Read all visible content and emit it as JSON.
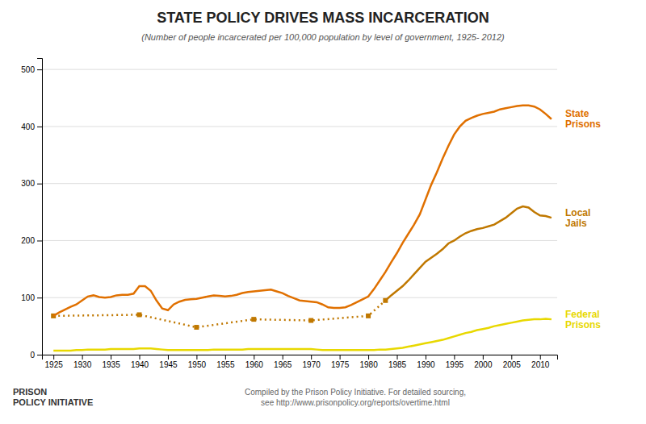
{
  "chart_data": {
    "type": "line",
    "title": "STATE POLICY DRIVES MASS INCARCERATION",
    "subtitle": "(Number of people incarcerated per 100,000 population by level of government, 1925- 2012)",
    "annotations": [
      "Compiled by the Prison Policy Initiative. For detailed sourcing,\nsee http://www.prisonpolicy.org/reports/overtime.html",
      "PRISON\nPOLICY INITIATIVE"
    ],
    "series": [
      {
        "name": "Federal\nPrisons",
        "color": "#e8d800",
        "line_style": "solid",
        "x": [
          1925,
          1926,
          1927,
          1928,
          1929,
          1930,
          1931,
          1932,
          1933,
          1934,
          1935,
          1936,
          1937,
          1938,
          1939,
          1940,
          1941,
          1942,
          1943,
          1944,
          1945,
          1946,
          1947,
          1948,
          1949,
          1950,
          1951,
          1952,
          1953,
          1954,
          1955,
          1956,
          1957,
          1958,
          1959,
          1960,
          1961,
          1962,
          1963,
          1964,
          1965,
          1966,
          1967,
          1968,
          1969,
          1970,
          1971,
          1972,
          1973,
          1974,
          1975,
          1976,
          1977,
          1978,
          1979,
          1980,
          1981,
          1982,
          1983,
          1984,
          1985,
          1986,
          1987,
          1988,
          1989,
          1990,
          1991,
          1992,
          1993,
          1994,
          1995,
          1996,
          1997,
          1998,
          1999,
          2000,
          2001,
          2002,
          2003,
          2004,
          2005,
          2006,
          2007,
          2008,
          2009,
          2010,
          2011,
          2012
        ],
        "values": [
          7,
          7,
          7,
          7,
          8,
          8,
          9,
          9,
          9,
          9,
          10,
          10,
          10,
          10,
          10,
          11,
          11,
          11,
          10,
          9,
          8,
          8,
          8,
          8,
          8,
          8,
          8,
          8,
          9,
          9,
          9,
          9,
          9,
          9,
          10,
          10,
          10,
          10,
          10,
          10,
          10,
          10,
          10,
          10,
          10,
          10,
          9,
          8,
          8,
          8,
          8,
          8,
          8,
          8,
          8,
          8,
          8,
          9,
          9,
          10,
          11,
          12,
          14,
          16,
          18,
          20,
          22,
          24,
          26,
          29,
          32,
          35,
          38,
          40,
          43,
          45,
          47,
          50,
          52,
          54,
          56,
          58,
          60,
          61,
          62,
          62,
          63,
          62
        ]
      },
      {
        "color": "#c07800",
        "line_style": "dotted",
        "marker": "square",
        "x": [
          1925,
          1940,
          1950,
          1960,
          1970,
          1980,
          1983
        ],
        "values": [
          68,
          70,
          48,
          62,
          60,
          68,
          95
        ]
      },
      {
        "name": "Local\nJails",
        "color": "#c07800",
        "line_style": "solid",
        "x": [
          1983,
          1984,
          1985,
          1986,
          1987,
          1988,
          1989,
          1990,
          1991,
          1992,
          1993,
          1994,
          1995,
          1996,
          1997,
          1998,
          1999,
          2000,
          2001,
          2002,
          2003,
          2004,
          2005,
          2006,
          2007,
          2008,
          2009,
          2010,
          2011,
          2012
        ],
        "values": [
          95,
          104,
          112,
          120,
          130,
          141,
          152,
          163,
          170,
          177,
          185,
          195,
          200,
          207,
          213,
          217,
          220,
          222,
          225,
          228,
          234,
          240,
          248,
          256,
          260,
          258,
          250,
          244,
          243,
          240
        ]
      },
      {
        "name": "State\nPrisons",
        "color": "#e07000",
        "line_style": "solid",
        "x": [
          1925,
          1926,
          1927,
          1928,
          1929,
          1930,
          1931,
          1932,
          1933,
          1934,
          1935,
          1936,
          1937,
          1938,
          1939,
          1940,
          1941,
          1942,
          1943,
          1944,
          1945,
          1946,
          1947,
          1948,
          1949,
          1950,
          1951,
          1952,
          1953,
          1954,
          1955,
          1956,
          1957,
          1958,
          1959,
          1960,
          1961,
          1962,
          1963,
          1964,
          1965,
          1966,
          1967,
          1968,
          1969,
          1970,
          1971,
          1972,
          1973,
          1974,
          1975,
          1976,
          1977,
          1978,
          1979,
          1980,
          1981,
          1982,
          1983,
          1984,
          1985,
          1986,
          1987,
          1988,
          1989,
          1990,
          1991,
          1992,
          1993,
          1994,
          1995,
          1996,
          1997,
          1998,
          1999,
          2000,
          2001,
          2002,
          2003,
          2004,
          2005,
          2006,
          2007,
          2008,
          2009,
          2010,
          2011,
          2012
        ],
        "values": [
          68,
          74,
          79,
          84,
          88,
          95,
          102,
          104,
          101,
          100,
          101,
          104,
          105,
          105,
          107,
          120,
          120,
          112,
          95,
          81,
          78,
          88,
          93,
          96,
          97,
          98,
          100,
          102,
          104,
          103,
          102,
          103,
          105,
          108,
          110,
          111,
          112,
          113,
          114,
          111,
          108,
          103,
          99,
          95,
          94,
          93,
          92,
          88,
          83,
          82,
          82,
          83,
          87,
          92,
          97,
          102,
          115,
          130,
          145,
          162,
          178,
          196,
          212,
          228,
          246,
          272,
          298,
          320,
          344,
          366,
          386,
          400,
          410,
          415,
          419,
          422,
          424,
          426,
          430,
          432,
          434,
          436,
          437,
          437,
          435,
          430,
          422,
          413
        ]
      }
    ],
    "xlim": [
      1923,
      2013
    ],
    "xticks": [
      1925,
      1930,
      1935,
      1940,
      1945,
      1950,
      1955,
      1960,
      1965,
      1970,
      1975,
      1980,
      1985,
      1990,
      1995,
      2000,
      2005,
      2010
    ],
    "ylim": [
      0,
      520
    ],
    "yticks": [
      0,
      100,
      200,
      300,
      400,
      500
    ],
    "grid": true
  }
}
